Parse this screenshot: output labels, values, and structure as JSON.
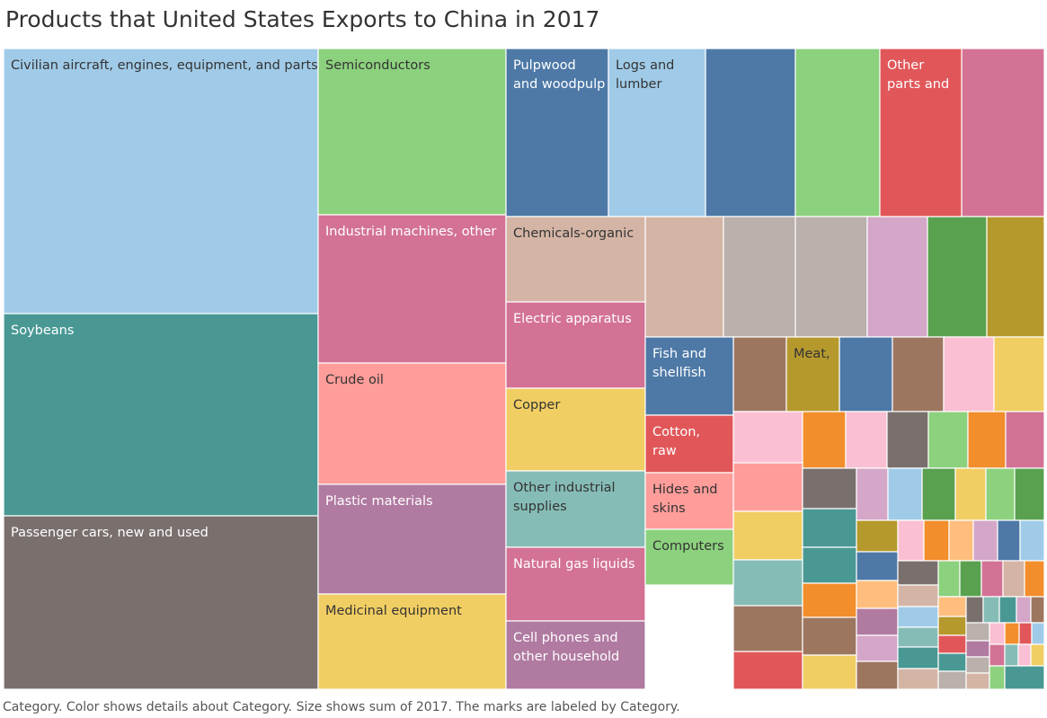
{
  "title": "Products that United States Exports to China in 2017",
  "caption": "Category.  Color shows details about Category.  Size shows sum of 2017.  The marks are labeled by Category.",
  "chart_data": {
    "type": "treemap",
    "title": "Products that United States Exports to China in 2017",
    "labeled_categories": [
      {
        "name": "Civilian aircraft, engines, equipment, and parts",
        "label_lines": [
          "Civilian aircraft, engines, equipment, and parts"
        ],
        "color": "#a0cbe8",
        "text_color": "#333333"
      },
      {
        "name": "Soybeans",
        "label_lines": [
          "Soybeans"
        ],
        "color": "#499894",
        "text_color": "#ffffff"
      },
      {
        "name": "Passenger cars, new and used",
        "label_lines": [
          "Passenger cars, new and used"
        ],
        "color": "#79706e",
        "text_color": "#ffffff"
      },
      {
        "name": "Semiconductors",
        "label_lines": [
          "Semiconductors"
        ],
        "color": "#8cd17d",
        "text_color": "#333333"
      },
      {
        "name": "Industrial machines, other",
        "label_lines": [
          "Industrial machines, other"
        ],
        "color": "#d37295",
        "text_color": "#ffffff"
      },
      {
        "name": "Crude oil",
        "label_lines": [
          "Crude oil"
        ],
        "color": "#ff9d9a",
        "text_color": "#333333"
      },
      {
        "name": "Plastic materials",
        "label_lines": [
          "Plastic materials"
        ],
        "color": "#b07aa1",
        "text_color": "#ffffff"
      },
      {
        "name": "Medicinal equipment",
        "label_lines": [
          "Medicinal equipment"
        ],
        "color": "#f1ce63",
        "text_color": "#333333"
      },
      {
        "name": "Pulpwood and woodpulp",
        "label_lines": [
          "Pulpwood",
          "and woodpulp"
        ],
        "color": "#4e79a7",
        "text_color": "#ffffff"
      },
      {
        "name": "Logs and lumber",
        "label_lines": [
          "Logs and",
          "lumber"
        ],
        "color": "#a0cbe8",
        "text_color": "#333333"
      },
      {
        "name": "Other parts and",
        "label_lines": [
          "Other",
          "parts and"
        ],
        "color": "#e15759",
        "text_color": "#ffffff"
      },
      {
        "name": "Chemicals-organic",
        "label_lines": [
          "Chemicals-organic"
        ],
        "color": "#d4b5a5",
        "text_color": "#333333"
      },
      {
        "name": "Electric apparatus",
        "label_lines": [
          "Electric apparatus"
        ],
        "color": "#d37295",
        "text_color": "#ffffff"
      },
      {
        "name": "Copper",
        "label_lines": [
          "Copper"
        ],
        "color": "#f1ce63",
        "text_color": "#333333"
      },
      {
        "name": "Other industrial supplies",
        "label_lines": [
          "Other industrial",
          "supplies"
        ],
        "color": "#86bcb6",
        "text_color": "#333333"
      },
      {
        "name": "Natural gas liquids",
        "label_lines": [
          "Natural gas liquids"
        ],
        "color": "#d37295",
        "text_color": "#ffffff"
      },
      {
        "name": "Cell phones and other household",
        "label_lines": [
          "Cell phones and",
          "other household"
        ],
        "color": "#b07aa1",
        "text_color": "#ffffff"
      },
      {
        "name": "Fish and shellfish",
        "label_lines": [
          "Fish and",
          "shellfish"
        ],
        "color": "#4e79a7",
        "text_color": "#ffffff"
      },
      {
        "name": "Meat,",
        "label_lines": [
          "Meat,"
        ],
        "color": "#b6992d",
        "text_color": "#333333"
      },
      {
        "name": "Cotton, raw",
        "label_lines": [
          "Cotton,",
          "raw"
        ],
        "color": "#e15759",
        "text_color": "#ffffff"
      },
      {
        "name": "Hides and skins",
        "label_lines": [
          "Hides and",
          "skins"
        ],
        "color": "#ff9d9a",
        "text_color": "#333333"
      },
      {
        "name": "Computers",
        "label_lines": [
          "Computers"
        ],
        "color": "#8cd17d",
        "text_color": "#333333"
      }
    ],
    "unlabeled_category_colors": [
      "#4e79a7",
      "#8cd17d",
      "#d37295",
      "#d4b5a5",
      "#bab0ac",
      "#bab0ac",
      "#d4a6c8",
      "#59a14f",
      "#b6992d",
      "#9d7660",
      "#4e79a7",
      "#9d7660",
      "#fabfd2",
      "#f1ce63",
      "#fabfd2",
      "#f28e2b",
      "#fabfd2",
      "#79706e",
      "#8cd17d",
      "#f28e2b",
      "#d37295",
      "#ff9d9a",
      "#f1ce63",
      "#86bcb6",
      "#9d7660",
      "#e15759",
      "#79706e",
      "#d4a6c8",
      "#a0cbe8",
      "#59a14f",
      "#f1ce63",
      "#8cd17d",
      "#59a14f",
      "#499894",
      "#499894",
      "#f28e2b",
      "#9d7660",
      "#f1ce63",
      "#b6992d",
      "#fabfd2",
      "#f28e2b",
      "#ffbe7d",
      "#d4a6c8",
      "#4e79a7",
      "#a0cbe8",
      "#4e79a7",
      "#ffbe7d",
      "#b07aa1",
      "#d4a6c8",
      "#9d7660",
      "#79706e",
      "#8cd17d",
      "#59a14f",
      "#d37295",
      "#d4b5a5",
      "#f28e2b",
      "#d4b5a5",
      "#a0cbe8",
      "#86bcb6",
      "#499894",
      "#d4b5a5",
      "#ffbe7d",
      "#b6992d",
      "#e15759",
      "#499894",
      "#bab0ac",
      "#79706e",
      "#86bcb6",
      "#499894",
      "#d4a6c8",
      "#9d7660",
      "#bab0ac",
      "#fabfd2",
      "#f28e2b",
      "#e15759",
      "#a0cbe8",
      "#b07aa1",
      "#bab0ac",
      "#d4b5a5",
      "#d37295",
      "#86bcb6",
      "#fabfd2",
      "#f1ce63",
      "#8cd17d",
      "#499894"
    ]
  }
}
